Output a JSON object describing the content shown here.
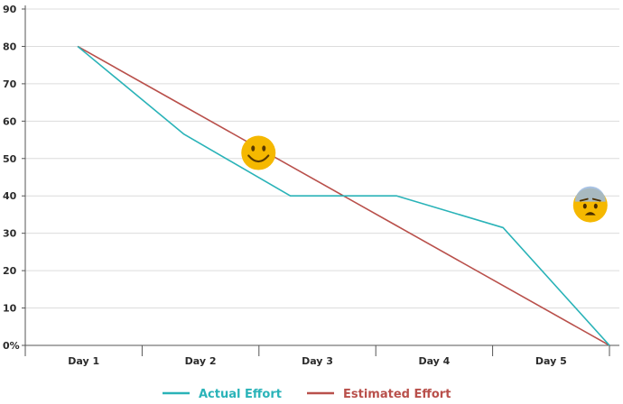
{
  "chart_data": {
    "type": "line",
    "title": "",
    "xlabel": "",
    "ylabel": "",
    "x": [
      0,
      1,
      2,
      3,
      4,
      5
    ],
    "categories": [
      "Day 1",
      "Day 2",
      "Day 3",
      "Day 4",
      "Day 5"
    ],
    "ylim": [
      0,
      90
    ],
    "yticks": [
      0,
      10,
      20,
      30,
      40,
      50,
      60,
      70,
      80,
      90
    ],
    "ytick_labels": [
      "0%",
      "10",
      "20",
      "30",
      "40",
      "50",
      "60",
      "70",
      "80",
      "90"
    ],
    "grid": true,
    "legend_position": "bottom-center",
    "series": [
      {
        "name": "Actual Effort",
        "color": "#2ab3b8",
        "values": [
          80,
          56.5,
          40,
          40,
          31.5,
          0
        ]
      },
      {
        "name": "Estimated Effort",
        "color": "#b9504b",
        "values": [
          80,
          64,
          48,
          32,
          16,
          0
        ]
      }
    ],
    "annotations": [
      {
        "icon": "smiley-face-icon",
        "x": 1.7,
        "y": 51.5,
        "color": "#f5b800"
      },
      {
        "icon": "anxious-face-icon",
        "x": 4.82,
        "y": 37.5,
        "color": "#f5b800"
      }
    ]
  }
}
